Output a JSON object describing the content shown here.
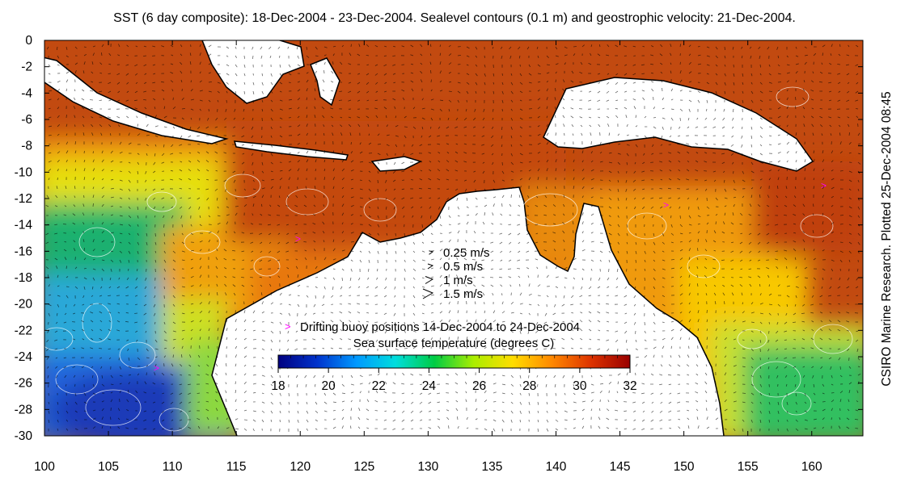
{
  "title": "SST (6 day composite): 18-Dec-2004 - 23-Dec-2004. Sealevel contours (0.1 m) and geostrophic velocity: 21-Dec-2004.",
  "credit": "CSIRO Marine Research. Plotted 25-Dec-2004 08:45",
  "axes": {
    "x": {
      "range": [
        100,
        164
      ],
      "ticks": [
        100,
        105,
        110,
        115,
        120,
        125,
        130,
        135,
        140,
        145,
        150,
        155,
        160
      ]
    },
    "y": {
      "range": [
        -30,
        0
      ],
      "ticks": [
        0,
        -2,
        -4,
        -6,
        -8,
        -10,
        -12,
        -14,
        -16,
        -18,
        -20,
        -22,
        -24,
        -26,
        -28,
        -30
      ]
    }
  },
  "velocity_legend": [
    {
      "label": "0.25 m/s",
      "speed": 0.25
    },
    {
      "label": "0.5 m/s",
      "speed": 0.5
    },
    {
      "label": "1 m/s",
      "speed": 1
    },
    {
      "label": "1.5 m/s",
      "speed": 1.5
    }
  ],
  "buoy_legend": {
    "label": "Drifting buoy positions 14-Dec-2004 to 24-Dec-2004",
    "marker": ">",
    "color": "#ff00ff"
  },
  "colorbar": {
    "title": "Sea surface temperature (degrees C)",
    "range": [
      18,
      32
    ],
    "ticks": [
      18,
      20,
      22,
      24,
      26,
      28,
      30,
      32
    ],
    "colors": [
      "#000080",
      "#0033cc",
      "#0099ff",
      "#00dddd",
      "#00cc44",
      "#aaee00",
      "#ffdd00",
      "#ff8800",
      "#dd3300",
      "#990000"
    ]
  },
  "colors": {
    "land": "#ffffff",
    "coast": "#000000",
    "contour": "#ffffff",
    "vector": "#000000"
  }
}
